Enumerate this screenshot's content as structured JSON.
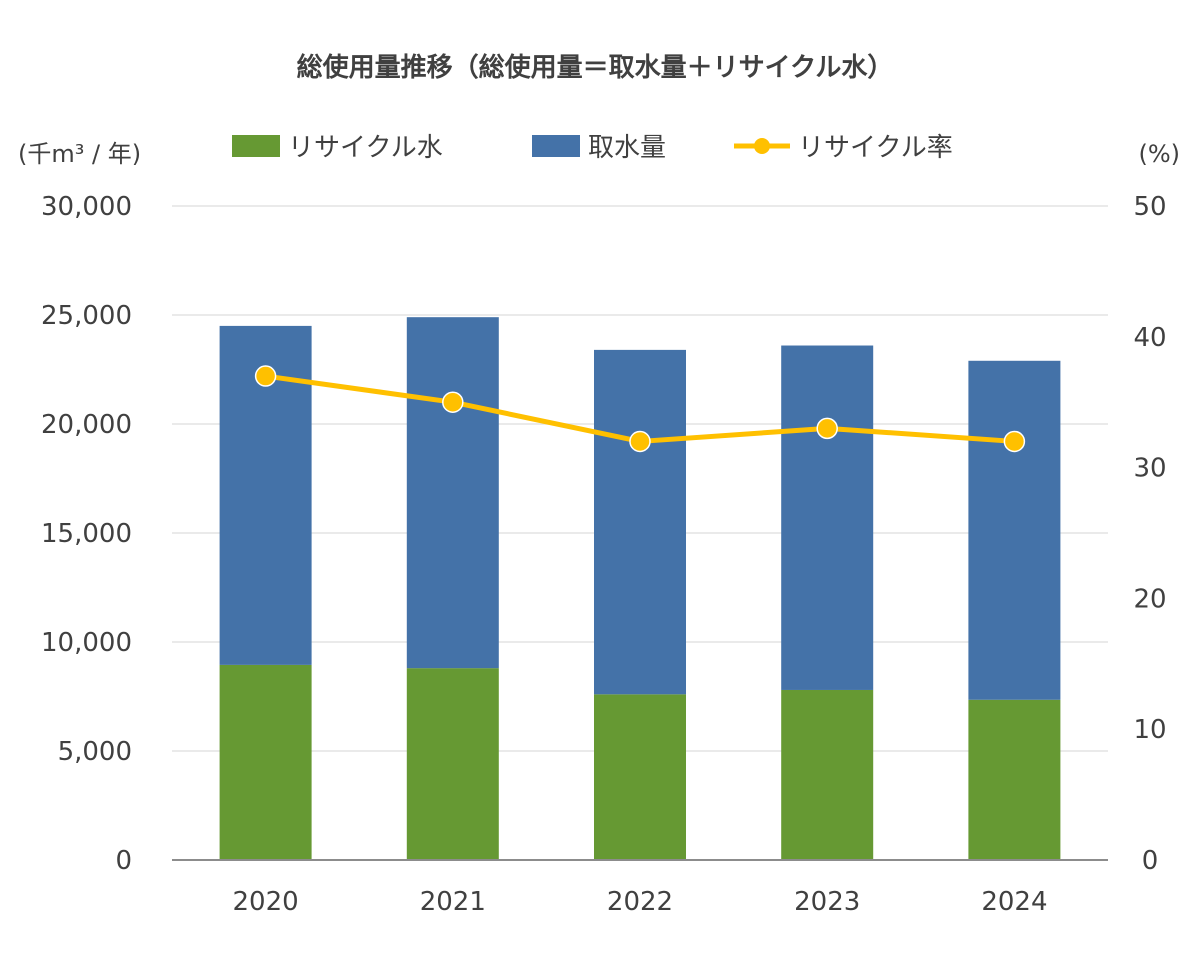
{
  "chart_data": {
    "type": "bar",
    "title": "総使用量推移（総使用量＝取水量＋リサイクル水）",
    "y_left_label": "(千m³ / 年)",
    "y_right_label": "(%)",
    "categories": [
      "2020",
      "2021",
      "2022",
      "2023",
      "2024"
    ],
    "stacked": true,
    "series": [
      {
        "name": "リサイクル水",
        "type": "bar",
        "axis": "left",
        "color": "#669933",
        "values": [
          8950,
          8800,
          7600,
          7800,
          7350
        ]
      },
      {
        "name": "取水量",
        "type": "bar",
        "axis": "left",
        "color": "#4472A8",
        "values": [
          15550,
          16100,
          15800,
          15800,
          15550
        ]
      },
      {
        "name": "リサイクル率",
        "type": "line",
        "axis": "right",
        "color": "#FFC000",
        "values": [
          37.0,
          35.0,
          32.0,
          33.0,
          32.0
        ]
      }
    ],
    "y_left": {
      "min": 0,
      "max": 30000,
      "ticks": [
        "0",
        "5,000",
        "10,000",
        "15,000",
        "20,000",
        "25,000",
        "30,000"
      ]
    },
    "y_right": {
      "min": 0,
      "max": 50,
      "ticks": [
        "0",
        "10",
        "20",
        "30",
        "40",
        "50"
      ]
    },
    "grid": true,
    "legend_position": "top"
  }
}
